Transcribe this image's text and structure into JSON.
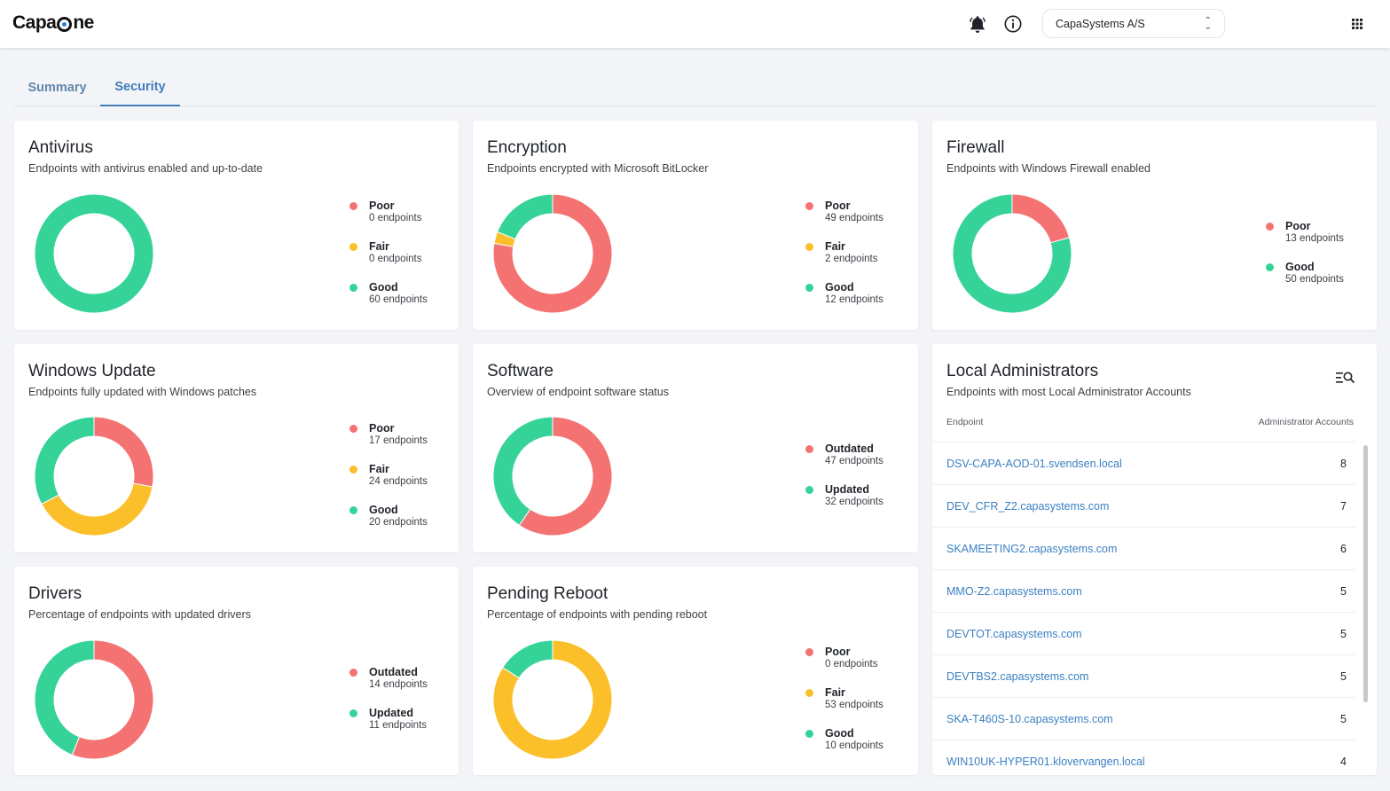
{
  "header": {
    "logo_text_left": "Capa",
    "logo_text_right": "ne",
    "bell_icon": "bell-icon",
    "info_icon": "info-icon",
    "organization": "CapaSystems A/S",
    "apps_icon": "grid-icon"
  },
  "tabs": [
    {
      "label": "Summary",
      "active": false
    },
    {
      "label": "Security",
      "active": true
    }
  ],
  "colors": {
    "poor": "#f47372",
    "fair": "#fbbf2a",
    "good": "#36d399",
    "link": "#3a80c2",
    "tab_active": "#3f7dbb"
  },
  "cards": {
    "antivirus": {
      "title": "Antivirus",
      "subtitle": "Endpoints with antivirus enabled and up-to-date",
      "legend": [
        {
          "label": "Poor",
          "count": "0 endpoints",
          "value": 0,
          "color": "#f47372"
        },
        {
          "label": "Fair",
          "count": "0 endpoints",
          "value": 0,
          "color": "#fbbf2a"
        },
        {
          "label": "Good",
          "count": "60 endpoints",
          "value": 60,
          "color": "#36d399"
        }
      ]
    },
    "encryption": {
      "title": "Encryption",
      "subtitle": "Endpoints encrypted with Microsoft BitLocker",
      "legend": [
        {
          "label": "Poor",
          "count": "49 endpoints",
          "value": 49,
          "color": "#f47372"
        },
        {
          "label": "Fair",
          "count": "2 endpoints",
          "value": 2,
          "color": "#fbbf2a"
        },
        {
          "label": "Good",
          "count": "12 endpoints",
          "value": 12,
          "color": "#36d399"
        }
      ]
    },
    "firewall": {
      "title": "Firewall",
      "subtitle": "Endpoints with Windows Firewall enabled",
      "legend": [
        {
          "label": "Poor",
          "count": "13 endpoints",
          "value": 13,
          "color": "#f47372"
        },
        {
          "label": "Good",
          "count": "50 endpoints",
          "value": 50,
          "color": "#36d399"
        }
      ]
    },
    "windows_update": {
      "title": "Windows Update",
      "subtitle": "Endpoints fully updated with Windows patches",
      "legend": [
        {
          "label": "Poor",
          "count": "17 endpoints",
          "value": 17,
          "color": "#f47372"
        },
        {
          "label": "Fair",
          "count": "24 endpoints",
          "value": 24,
          "color": "#fbbf2a"
        },
        {
          "label": "Good",
          "count": "20 endpoints",
          "value": 20,
          "color": "#36d399"
        }
      ]
    },
    "software": {
      "title": "Software",
      "subtitle": "Overview of endpoint software status",
      "legend": [
        {
          "label": "Outdated",
          "count": "47 endpoints",
          "value": 47,
          "color": "#f47372"
        },
        {
          "label": "Updated",
          "count": "32 endpoints",
          "value": 32,
          "color": "#36d399"
        }
      ]
    },
    "drivers": {
      "title": "Drivers",
      "subtitle": "Percentage of endpoints with updated drivers",
      "legend": [
        {
          "label": "Outdated",
          "count": "14 endpoints",
          "value": 14,
          "color": "#f47372"
        },
        {
          "label": "Updated",
          "count": "11 endpoints",
          "value": 11,
          "color": "#36d399"
        }
      ]
    },
    "pending_reboot": {
      "title": "Pending Reboot",
      "subtitle": "Percentage of endpoints with pending reboot",
      "legend": [
        {
          "label": "Poor",
          "count": "0 endpoints",
          "value": 0,
          "color": "#f47372"
        },
        {
          "label": "Fair",
          "count": "53 endpoints",
          "value": 53,
          "color": "#fbbf2a"
        },
        {
          "label": "Good",
          "count": "10 endpoints",
          "value": 10,
          "color": "#36d399"
        }
      ]
    },
    "local_admins": {
      "title": "Local Administrators",
      "subtitle": "Endpoints with most Local Administrator Accounts",
      "col_endpoint": "Endpoint",
      "col_accounts": "Administrator Accounts",
      "rows": [
        {
          "endpoint": "DSV-CAPA-AOD-01.svendsen.local",
          "count": "8"
        },
        {
          "endpoint": "DEV_CFR_Z2.capasystems.com",
          "count": "7"
        },
        {
          "endpoint": "SKAMEETING2.capasystems.com",
          "count": "6"
        },
        {
          "endpoint": "MMO-Z2.capasystems.com",
          "count": "5"
        },
        {
          "endpoint": "DEVTOT.capasystems.com",
          "count": "5"
        },
        {
          "endpoint": "DEVTBS2.capasystems.com",
          "count": "5"
        },
        {
          "endpoint": "SKA-T460S-10.capasystems.com",
          "count": "5"
        },
        {
          "endpoint": "WIN10UK-HYPER01.klovervangen.local",
          "count": "4"
        }
      ]
    }
  }
}
